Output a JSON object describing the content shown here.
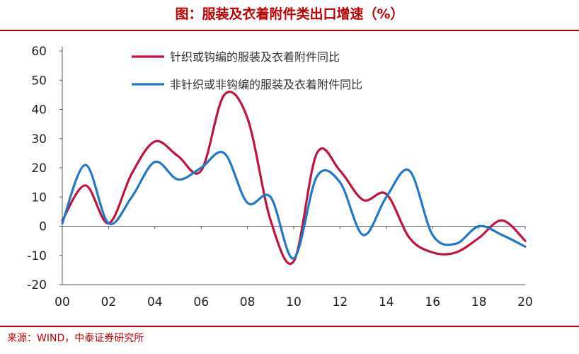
{
  "title": "图：服装及衣着附件类出口增速（%）",
  "source": "来源：WIND，中泰证券研究所",
  "colors": {
    "series1": "#c0143c",
    "series2": "#1f78c8",
    "accent": "#c00000"
  },
  "chart_data": {
    "type": "line",
    "title": "图：服装及衣着附件类出口增速（%）",
    "xlabel": "",
    "ylabel": "",
    "x_ticks": [
      "00",
      "02",
      "04",
      "06",
      "08",
      "10",
      "12",
      "14",
      "16",
      "18",
      "20"
    ],
    "y_ticks": [
      -20,
      -10,
      0,
      10,
      20,
      30,
      40,
      50,
      60
    ],
    "xlim": [
      0,
      20
    ],
    "ylim": [
      -20,
      60
    ],
    "grid": false,
    "legend_position": "top",
    "series": [
      {
        "name": "针织或钩编的服装及衣着附件同比",
        "x": [
          0,
          1,
          2,
          3,
          4,
          5,
          6,
          7,
          8,
          9,
          10,
          11,
          12,
          13,
          14,
          15,
          16,
          17,
          18,
          19,
          20
        ],
        "values": [
          2,
          14,
          1,
          18,
          29,
          24,
          19,
          45,
          37,
          2,
          -12,
          25,
          19,
          9,
          11,
          -4,
          -9,
          -9,
          -4,
          2,
          -5
        ]
      },
      {
        "name": "非针织或非钩编的服装及衣着附件同比",
        "x": [
          0,
          1,
          2,
          3,
          4,
          5,
          6,
          7,
          8,
          9,
          10,
          11,
          12,
          13,
          14,
          15,
          16,
          17,
          18,
          19,
          20
        ],
        "values": [
          1,
          21,
          1,
          10,
          22,
          16,
          20,
          25,
          8,
          10,
          -11,
          17,
          15,
          -3,
          10,
          19,
          -3,
          -6,
          0,
          -3,
          -7
        ]
      }
    ]
  }
}
